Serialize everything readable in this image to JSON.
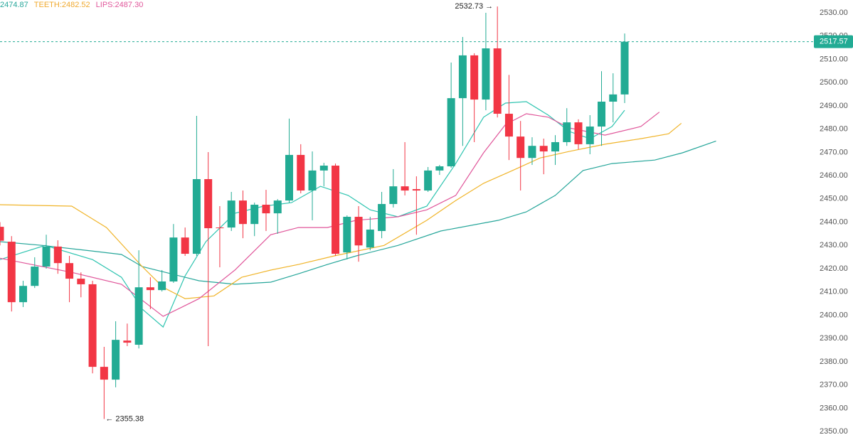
{
  "chart_data": {
    "type": "candlestick",
    "legend": [
      {
        "text": "2474.87",
        "color": "#26a69a"
      },
      {
        "text": "TEETH:2482.52",
        "color": "#f0a92e"
      },
      {
        "text": "LIPS:2487.30",
        "color": "#e0569a"
      }
    ],
    "up_color": "#22ab94",
    "down_color": "#f23645",
    "open": [
      2438,
      2431.6,
      2405.6,
      2412.6,
      2420.9,
      2429.5,
      2422.4,
      2415.7,
      2413.3,
      2377.8,
      2372.3,
      2389.1,
      2387.3,
      2412,
      2410.8,
      2414.5,
      2433.4,
      2426.4,
      2458.5,
      2437.7,
      2437.7,
      2449.3,
      2439.2,
      2447.5,
      2443.8,
      2449.3,
      2468.9,
      2453.6,
      2462.2,
      2464.3,
      2427,
      2442.3,
      2429.1,
      2436.2,
      2447.8,
      2455.4,
      2454.2,
      2453.6,
      2462.2,
      2464,
      2493.3,
      2511.7,
      2492.7,
      2514.7,
      2486.6,
      2476.8,
      2467.6,
      2472.8,
      2470.4,
      2474.4,
      2482.9,
      2473.5,
      2481.1,
      2491.8,
      2494.9
    ],
    "high": [
      2440,
      2434,
      2414.8,
      2424.9,
      2434.6,
      2432.2,
      2425.5,
      2418.4,
      2414.8,
      2386.4,
      2397.4,
      2396.4,
      2427.9,
      2416.3,
      2419.4,
      2439.2,
      2437.7,
      2485.7,
      2470.1,
      2446.9,
      2453,
      2453.6,
      2448.4,
      2453.9,
      2449.9,
      2484.5,
      2473.5,
      2470.4,
      2465.5,
      2465.2,
      2442.9,
      2446.9,
      2442.3,
      2453,
      2462.8,
      2474.4,
      2459.7,
      2463.7,
      2464.6,
      2508.6,
      2519.6,
      2512.6,
      2530,
      2532.73,
      2503.3,
      2483.5,
      2476.5,
      2475.9,
      2477.4,
      2489,
      2484.2,
      2486,
      2504.9,
      2504,
      2521.1
    ],
    "low": [
      2430,
      2401.6,
      2403.5,
      2411.7,
      2420,
      2417.8,
      2405.6,
      2407.7,
      2375,
      2355.38,
      2369,
      2386.7,
      2385.7,
      2402.6,
      2410.2,
      2413.9,
      2425.5,
      2425.5,
      2386.7,
      2420.6,
      2436.2,
      2433.1,
      2434,
      2436.2,
      2435,
      2448.4,
      2452.4,
      2440.8,
      2455.4,
      2425.5,
      2424,
      2423,
      2427.9,
      2433.1,
      2446.3,
      2451.5,
      2434.6,
      2453,
      2460.3,
      2463.4,
      2472.8,
      2474.4,
      2488.1,
      2485,
      2466.7,
      2453.6,
      2464.6,
      2460.6,
      2464.6,
      2472.8,
      2471.3,
      2469.2,
      2472.8,
      2482.9,
      2491.2
    ],
    "close": [
      2432,
      2405.6,
      2412.6,
      2420.9,
      2429.5,
      2422.4,
      2415.7,
      2413.3,
      2377.8,
      2372.3,
      2389.4,
      2388.2,
      2412,
      2410.8,
      2414.5,
      2433.4,
      2426.4,
      2458.5,
      2437.4,
      2437.4,
      2449.3,
      2439.2,
      2447.5,
      2443.8,
      2449.3,
      2468.9,
      2453.6,
      2462.2,
      2464.3,
      2426.4,
      2442.3,
      2430,
      2436.8,
      2447.8,
      2455.4,
      2453.6,
      2453.6,
      2462.2,
      2464,
      2493.3,
      2511.7,
      2492.7,
      2514.7,
      2486.6,
      2476.8,
      2467.6,
      2472.8,
      2470.4,
      2474.4,
      2482.9,
      2473.5,
      2481.1,
      2491.8,
      2494.9,
      2517.57
    ],
    "indicators": [
      {
        "color": "#2ec4b0",
        "x": [
          0,
          3.9,
          8,
          10.5,
          12.3,
          14.1,
          16,
          17.8,
          20.3,
          22.8,
          25.2,
          27.7,
          30.1,
          32,
          34.4,
          36.9,
          39.4,
          41.8,
          43.7,
          45.5,
          47.4,
          49.2,
          51,
          52.9,
          54
        ],
        "values": [
          2423.9,
          2430,
          2423.9,
          2416.3,
          2402.6,
          2394.9,
          2416.9,
          2431.6,
          2443.8,
          2446.9,
          2448.4,
          2455.4,
          2451.5,
          2445.3,
          2442.3,
          2446.9,
          2465.2,
          2485.1,
          2491.2,
          2491.8,
          2486,
          2479,
          2475.9,
          2481.1,
          2488.1
        ]
      },
      {
        "color": "#26a69a",
        "x": [
          0,
          3.7,
          7.4,
          10.5,
          12.3,
          14.8,
          17.2,
          20.3,
          23.4,
          25.8,
          28.3,
          30.8,
          34.4,
          38.1,
          43.1,
          45.5,
          48,
          50.4,
          52.9,
          56.6,
          59,
          61.9
        ],
        "values": [
          2431.6,
          2430,
          2427.9,
          2426.1,
          2420.9,
          2417.8,
          2414.8,
          2413.3,
          2414.2,
          2417.8,
          2421.8,
          2425.5,
          2430,
          2436.2,
          2440.8,
          2444.4,
          2451.5,
          2462.2,
          2465.2,
          2466.7,
          2469.8,
          2474.87
        ]
      },
      {
        "color": "#f0b429",
        "x": [
          0,
          6.2,
          9.2,
          12.3,
          14.1,
          16,
          18.5,
          20.9,
          23.4,
          25.8,
          28.9,
          33.2,
          36.9,
          39.4,
          41.8,
          44.3,
          46.7,
          49.2,
          52.3,
          55.4,
          57.8,
          58.9
        ],
        "values": [
          2447.5,
          2446.9,
          2437.7,
          2420.9,
          2412,
          2407.1,
          2408.3,
          2416.3,
          2419.4,
          2421.8,
          2425.5,
          2430,
          2440.8,
          2449.3,
          2456.7,
          2462.2,
          2467.6,
          2470.4,
          2473.5,
          2475.9,
          2478,
          2482.52
        ]
      },
      {
        "color": "#e0569a",
        "x": [
          0,
          6.2,
          10.5,
          14.1,
          17.2,
          20.3,
          23.4,
          25.8,
          28.3,
          30.8,
          34.4,
          36.9,
          39.4,
          41.8,
          43.7,
          45.5,
          47.4,
          49.2,
          52.3,
          55.4,
          57
        ],
        "values": [
          2424.5,
          2418.4,
          2413.3,
          2399.5,
          2407.1,
          2419.4,
          2434.6,
          2437.7,
          2437.7,
          2440.8,
          2442.3,
          2445.3,
          2451.5,
          2469.8,
          2482,
          2486.6,
          2485.1,
          2480.5,
          2477.4,
          2481.1,
          2487.3
        ]
      }
    ],
    "annotations": [
      {
        "value": 2532.73,
        "label": "2532.73 →",
        "side": "high"
      },
      {
        "value": 2355.38,
        "label": "← 2355.38",
        "side": "low"
      }
    ],
    "current_price": 2517.57,
    "ylim": [
      2348.5,
      2535.5
    ],
    "yticks": [
      {
        "value": 2350,
        "label": "2350.00"
      },
      {
        "value": 2360,
        "label": "2360.00"
      },
      {
        "value": 2370,
        "label": "2370.00"
      },
      {
        "value": 2380,
        "label": "2380.00"
      },
      {
        "value": 2390,
        "label": "2390.00"
      },
      {
        "value": 2400,
        "label": "2400.00"
      },
      {
        "value": 2410,
        "label": "2410.00"
      },
      {
        "value": 2420,
        "label": "2420.00"
      },
      {
        "value": 2430,
        "label": "2430.00"
      },
      {
        "value": 2440,
        "label": "2440.00"
      },
      {
        "value": 2450,
        "label": "2450.00"
      },
      {
        "value": 2460,
        "label": "2460.00"
      },
      {
        "value": 2470,
        "label": "2470.00"
      },
      {
        "value": 2480,
        "label": "2480.00"
      },
      {
        "value": 2490,
        "label": "2490.00"
      },
      {
        "value": 2500,
        "label": "2500.00"
      },
      {
        "value": 2510,
        "label": "2510.00"
      },
      {
        "value": 2520,
        "label": "2520.00"
      },
      {
        "value": 2530,
        "label": "2530.00"
      }
    ]
  }
}
